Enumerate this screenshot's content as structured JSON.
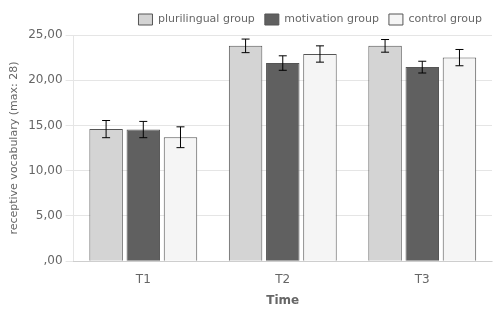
{
  "chart_data": {
    "type": "bar",
    "xlabel": "Time",
    "ylabel": "receptive vocabulary (max: 28)",
    "categories": [
      "T1",
      "T2",
      "T3"
    ],
    "series": [
      {
        "name": "plurilingual group",
        "color": "#d4d4d4",
        "values": [
          14.6,
          23.8,
          23.8
        ],
        "errors": [
          0.95,
          0.75,
          0.7
        ]
      },
      {
        "name": "motivation group",
        "color": "#606060",
        "values": [
          14.55,
          21.9,
          21.45
        ],
        "errors": [
          0.9,
          0.8,
          0.65
        ]
      },
      {
        "name": "control group",
        "color": "#f5f5f5",
        "values": [
          13.7,
          22.9,
          22.5
        ],
        "errors": [
          1.15,
          0.9,
          0.9
        ]
      }
    ],
    "ylim": [
      0,
      25
    ],
    "yticks": [
      {
        "value": 0.0,
        "label": ",00"
      },
      {
        "value": 5.0,
        "label": "5,00"
      },
      {
        "value": 10.0,
        "label": "10,00"
      },
      {
        "value": 15.0,
        "label": "15,00"
      },
      {
        "value": 20.0,
        "label": "20,00"
      },
      {
        "value": 25.0,
        "label": "25,00"
      }
    ],
    "grid": true,
    "legend": "upper right"
  }
}
